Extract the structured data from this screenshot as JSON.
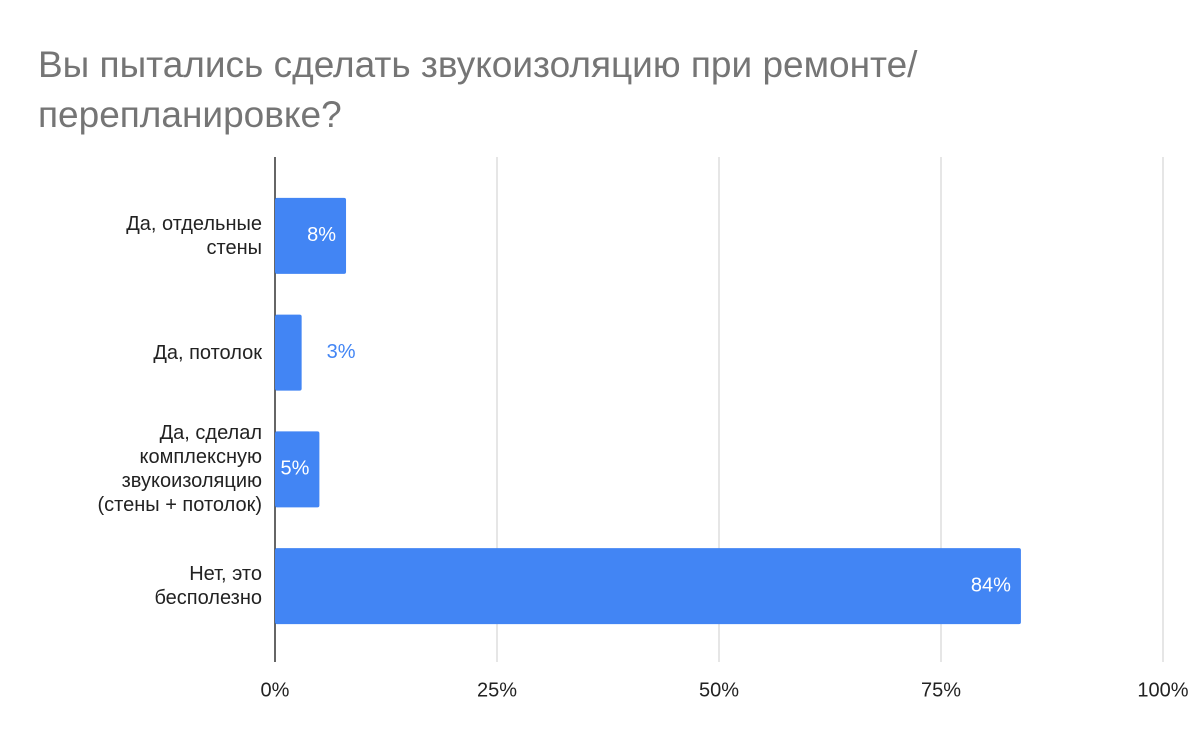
{
  "chart_data": {
    "type": "bar",
    "orientation": "horizontal",
    "title": "Вы пытались сделать звукоизоляцию при ремонте/перепланировке?",
    "categories": [
      "Да, отдельные\nстены",
      "Да, потолок",
      "Да, сделал\nкомплексную\nзвукоизоляцию\n(стены + потолок)",
      "Нет, это\nбесполезно"
    ],
    "values": [
      8,
      3,
      5,
      84
    ],
    "value_labels": [
      "8%",
      "3%",
      "5%",
      "84%"
    ],
    "color": "#4285f4",
    "xlim": [
      0,
      100
    ],
    "xticks": [
      {
        "value": 0,
        "label": "0%"
      },
      {
        "value": 25,
        "label": "25%"
      },
      {
        "value": 50,
        "label": "50%"
      },
      {
        "value": 75,
        "label": "75%"
      },
      {
        "value": 100,
        "label": "100%"
      }
    ],
    "grid": true
  }
}
